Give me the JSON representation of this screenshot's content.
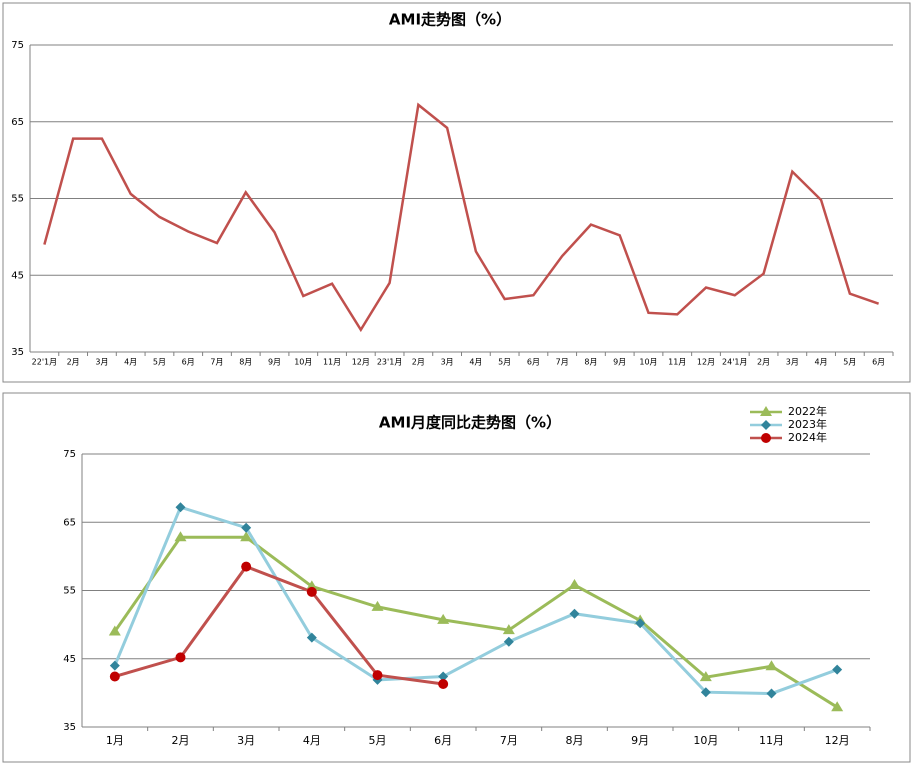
{
  "chart_data": [
    {
      "type": "line",
      "title": "AMI走势图（%）",
      "categories": [
        "22'1月",
        "2月",
        "3月",
        "4月",
        "5月",
        "6月",
        "7月",
        "8月",
        "9月",
        "10月",
        "11月",
        "12月",
        "23'1月",
        "2月",
        "3月",
        "4月",
        "5月",
        "6月",
        "7月",
        "8月",
        "9月",
        "10月",
        "11月",
        "12月",
        "24'1月",
        "2月",
        "3月",
        "4月",
        "5月",
        "6月"
      ],
      "series": [
        {
          "name": "AMI",
          "color": "#c0504d",
          "marker": "none",
          "values": [
            49,
            62.8,
            62.8,
            55.6,
            52.6,
            50.7,
            49.2,
            55.8,
            50.6,
            42.3,
            43.9,
            37.9,
            44,
            67.2,
            64.2,
            48.1,
            41.9,
            42.4,
            47.5,
            51.6,
            50.2,
            40.1,
            39.9,
            43.4,
            42.4,
            45.2,
            58.5,
            54.8,
            42.6,
            41.3
          ]
        }
      ],
      "ylim": [
        35,
        75
      ],
      "yticks": [
        35,
        45,
        55,
        65,
        75
      ],
      "grid": true,
      "legend": "none"
    },
    {
      "type": "line",
      "title": "AMI月度同比走势图（%）",
      "categories": [
        "1月",
        "2月",
        "3月",
        "4月",
        "5月",
        "6月",
        "7月",
        "8月",
        "9月",
        "10月",
        "11月",
        "12月"
      ],
      "series": [
        {
          "name": "2022年",
          "color": "#9bbb59",
          "marker_color": "#9bbb59",
          "marker": "triangle",
          "values": [
            49,
            62.8,
            62.8,
            55.6,
            52.6,
            50.7,
            49.2,
            55.8,
            50.6,
            42.3,
            43.9,
            37.9
          ]
        },
        {
          "name": "2023年",
          "color": "#93cddd",
          "marker_color": "#31849b",
          "marker": "diamond",
          "values": [
            44,
            67.2,
            64.2,
            48.1,
            41.9,
            42.4,
            47.5,
            51.6,
            50.2,
            40.1,
            39.9,
            43.4
          ]
        },
        {
          "name": "2024年",
          "color": "#c0504d",
          "marker_color": "#c00000",
          "marker": "circle",
          "values": [
            42.4,
            45.2,
            58.5,
            54.8,
            42.6,
            41.3,
            null,
            null,
            null,
            null,
            null,
            null
          ]
        }
      ],
      "ylim": [
        35,
        75
      ],
      "yticks": [
        35,
        45,
        55,
        65,
        75
      ],
      "grid": true,
      "legend": "top-right"
    }
  ]
}
